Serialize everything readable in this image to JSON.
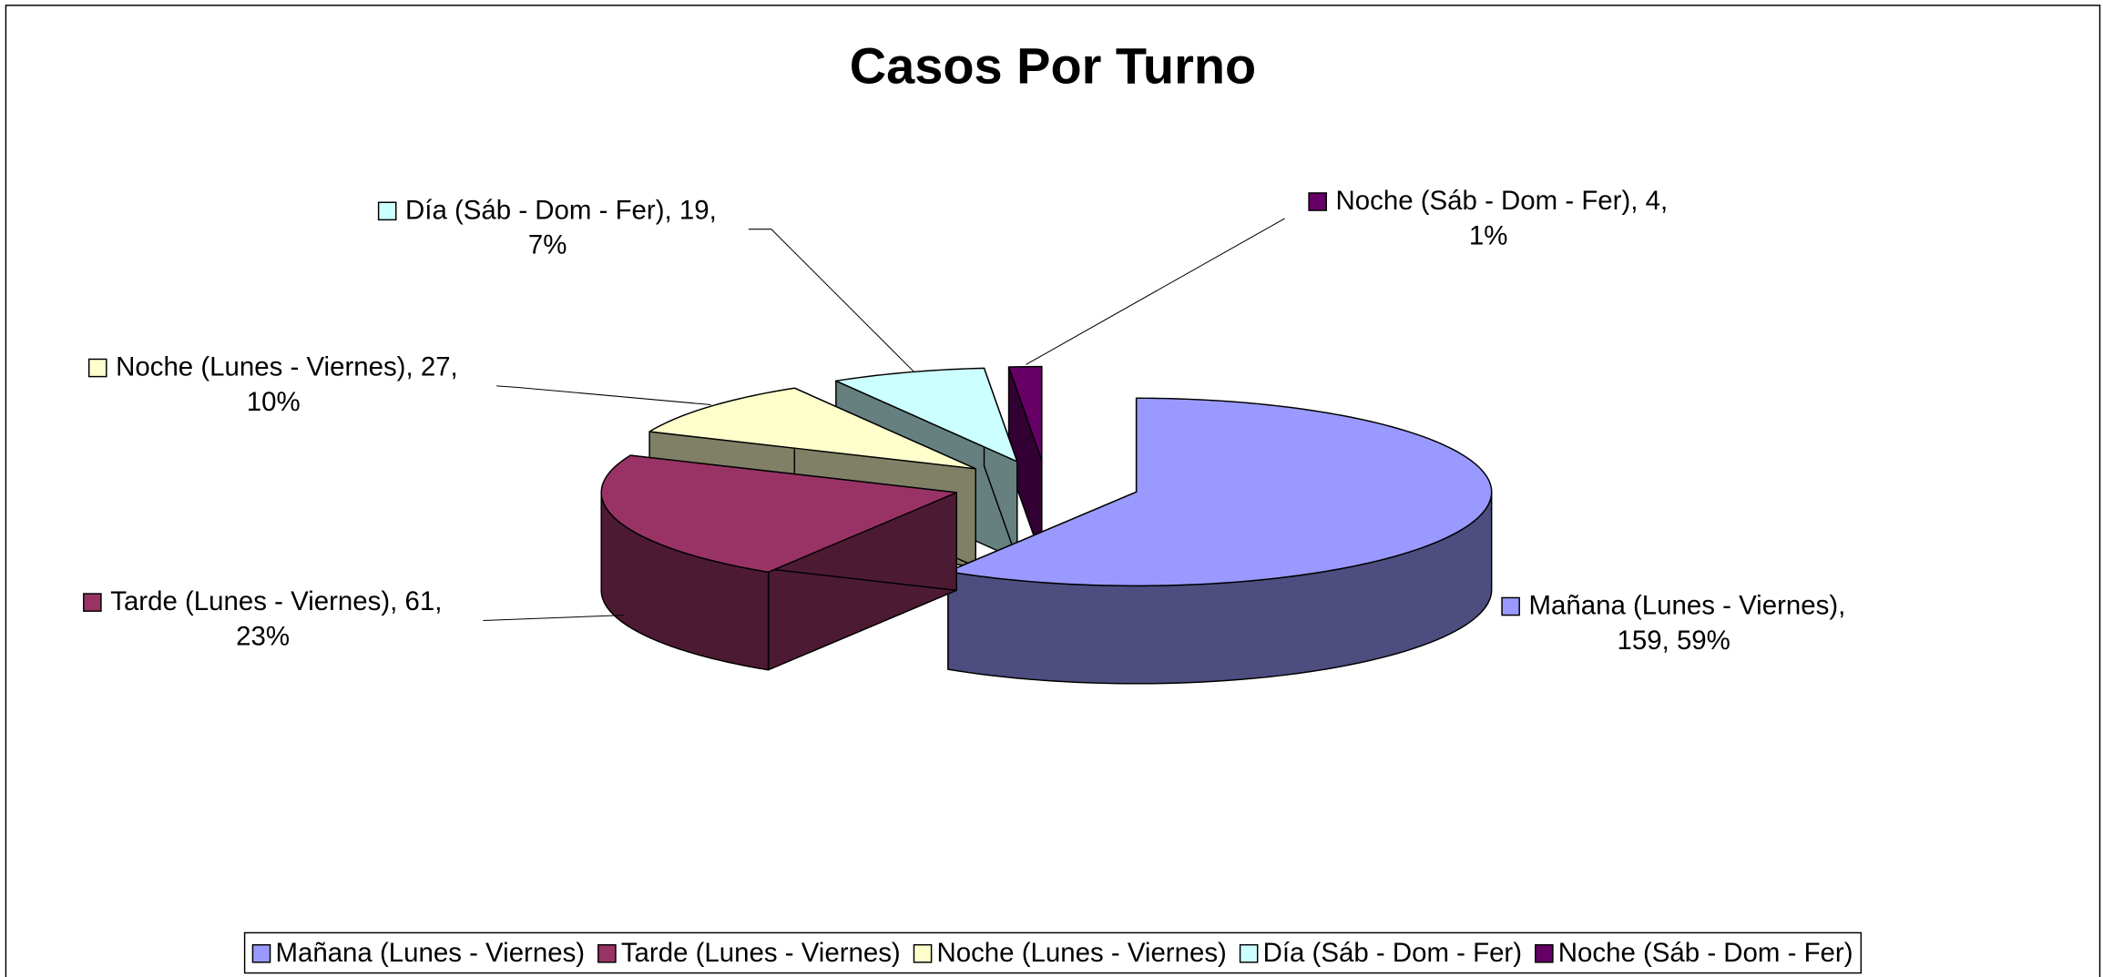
{
  "chart_data": {
    "type": "pie3d",
    "title": "Casos Por Turno",
    "categories": [
      "Mañana (Lunes - Viernes)",
      "Tarde (Lunes - Viernes)",
      "Noche (Lunes - Viernes)",
      "Día (Sáb - Dom - Fer)",
      "Noche (Sáb - Dom - Fer)"
    ],
    "values": [
      159,
      61,
      27,
      19,
      4
    ],
    "data_labels": [
      [
        "Mañana (Lunes - Viernes),",
        "159, 59%"
      ],
      [
        "Tarde (Lunes - Viernes), 61,",
        "23%"
      ],
      [
        "Noche (Lunes - Viernes), 27,",
        "10%"
      ],
      [
        "Día (Sáb - Dom - Fer), 19,",
        "7%"
      ],
      [
        "Noche (Sáb - Dom - Fer), 4,",
        "1%"
      ]
    ],
    "colors": [
      "#9999ff",
      "#993366",
      "#ffffcc",
      "#ccffff",
      "#660066"
    ],
    "legend": "bottom"
  }
}
